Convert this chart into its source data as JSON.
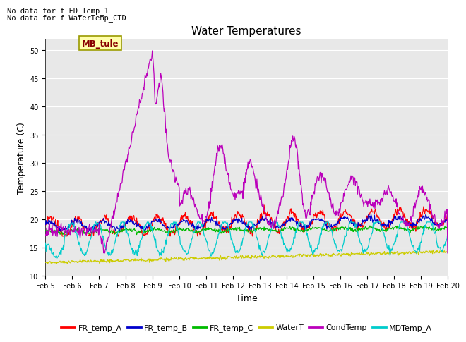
{
  "title": "Water Temperatures",
  "xlabel": "Time",
  "ylabel": "Temperature (C)",
  "note_line1": "No data for f FD_Temp_1",
  "note_line2": "No data for f WaterTemp_CTD",
  "mb_tule_label": "MB_tule",
  "ylim": [
    10,
    52
  ],
  "yticks": [
    10,
    15,
    20,
    25,
    30,
    35,
    40,
    45,
    50
  ],
  "x_labels": [
    "Feb 5",
    "Feb 6",
    "Feb 7",
    "Feb 8",
    "Feb 9",
    "Feb 10",
    "Feb 11",
    "Feb 12",
    "Feb 13",
    "Feb 14",
    "Feb 15",
    "Feb 16",
    "Feb 17",
    "Feb 18",
    "Feb 19",
    "Feb 20"
  ],
  "series_colors": {
    "FR_temp_A": "#ff0000",
    "FR_temp_B": "#0000cc",
    "FR_temp_C": "#00bb00",
    "WaterT": "#cccc00",
    "CondTemp": "#bb00bb",
    "MDTemp_A": "#00cccc"
  },
  "background_color": "#e8e8e8",
  "title_fontsize": 11,
  "axis_label_fontsize": 9,
  "tick_fontsize": 7,
  "legend_fontsize": 8,
  "note_fontsize": 7.5
}
